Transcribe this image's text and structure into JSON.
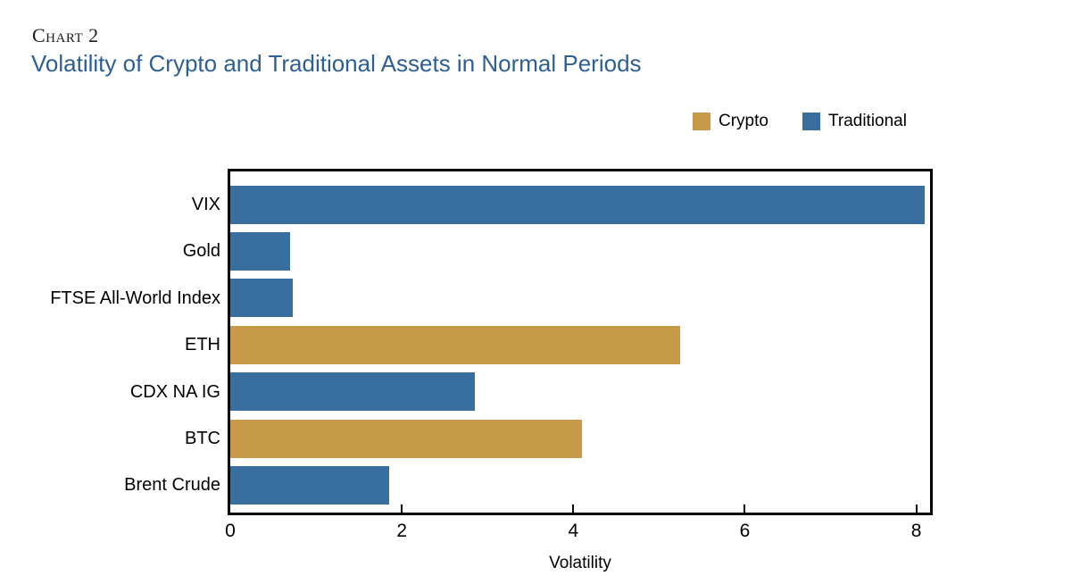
{
  "header": {
    "chart_label": "Chart 2",
    "title": "Volatility of Crypto and Traditional Assets in Normal Periods",
    "title_color": "#2e5f94"
  },
  "legend": {
    "items": [
      "Crypto",
      "Traditional"
    ],
    "position": "top-right"
  },
  "chart_data": {
    "type": "bar",
    "orientation": "horizontal",
    "title": "Volatility of Crypto and Traditional Assets in Normal Periods",
    "xlabel": "Volatility",
    "ylabel": "",
    "xlim": [
      0,
      8.2
    ],
    "xticks": [
      "0",
      "2",
      "4",
      "6",
      "8"
    ],
    "grid": false,
    "legend_position": "top-right",
    "categories": [
      "VIX",
      "Gold",
      "FTSE All-World Index",
      "ETH",
      "CDX NA IG",
      "BTC",
      "Brent Crude"
    ],
    "values": [
      8.1,
      0.7,
      0.73,
      5.25,
      2.85,
      4.1,
      1.85
    ],
    "groups": [
      "Traditional",
      "Traditional",
      "Traditional",
      "Crypto",
      "Traditional",
      "Crypto",
      "Traditional"
    ],
    "group_colors": {
      "Crypto": "#c79a4a",
      "Traditional": "#396f9e"
    }
  }
}
